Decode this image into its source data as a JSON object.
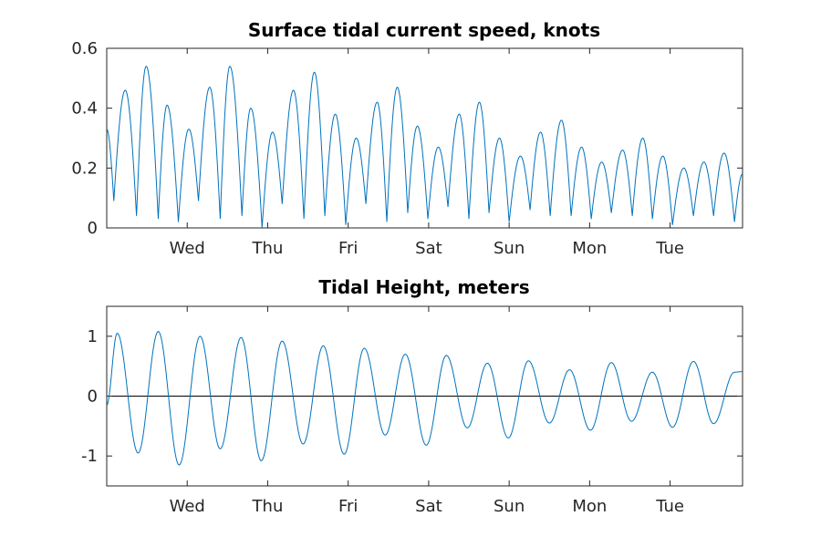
{
  "chart_data": [
    {
      "type": "line",
      "title": "Surface tidal current speed, knots",
      "xlabel": "",
      "ylabel": "",
      "x_unit": "days",
      "xlim": [
        0,
        7.9
      ],
      "ylim": [
        0,
        0.6
      ],
      "x_ticks": [
        {
          "value": 1,
          "label": "Wed"
        },
        {
          "value": 2,
          "label": "Thu"
        },
        {
          "value": 3,
          "label": "Fri"
        },
        {
          "value": 4,
          "label": "Sat"
        },
        {
          "value": 5,
          "label": "Sun"
        },
        {
          "value": 6,
          "label": "Mon"
        },
        {
          "value": 7,
          "label": "Tue"
        }
      ],
      "y_ticks": [
        {
          "value": 0,
          "label": "0"
        },
        {
          "value": 0.2,
          "label": "0.2"
        },
        {
          "value": 0.4,
          "label": "0.4"
        },
        {
          "value": 0.6,
          "label": "0.6"
        }
      ],
      "grid": false,
      "series": [
        {
          "color": "#0072bd",
          "x": [
            0.0,
            0.088,
            0.23,
            0.37,
            0.49,
            0.64,
            0.75,
            0.89,
            1.02,
            1.14,
            1.28,
            1.41,
            1.53,
            1.68,
            1.79,
            1.93,
            2.06,
            2.18,
            2.32,
            2.45,
            2.58,
            2.71,
            2.84,
            2.97,
            3.1,
            3.22,
            3.36,
            3.48,
            3.61,
            3.74,
            3.86,
            3.99,
            4.12,
            4.24,
            4.38,
            4.5,
            4.63,
            4.75,
            4.88,
            5.0,
            5.14,
            5.26,
            5.39,
            5.51,
            5.65,
            5.77,
            5.9,
            6.02,
            6.15,
            6.27,
            6.41,
            6.53,
            6.66,
            6.78,
            6.91,
            7.03,
            7.17,
            7.29,
            7.42,
            7.54,
            7.67,
            7.8,
            7.9
          ],
          "y": [
            0.33,
            0.09,
            0.46,
            0.04,
            0.54,
            0.03,
            0.41,
            0.02,
            0.33,
            0.09,
            0.47,
            0.03,
            0.54,
            0.04,
            0.4,
            0.0,
            0.32,
            0.08,
            0.46,
            0.03,
            0.52,
            0.04,
            0.38,
            0.01,
            0.3,
            0.08,
            0.42,
            0.02,
            0.47,
            0.05,
            0.34,
            0.03,
            0.27,
            0.07,
            0.38,
            0.03,
            0.42,
            0.05,
            0.3,
            0.02,
            0.24,
            0.06,
            0.32,
            0.04,
            0.36,
            0.04,
            0.27,
            0.03,
            0.22,
            0.05,
            0.26,
            0.04,
            0.3,
            0.03,
            0.24,
            0.01,
            0.2,
            0.04,
            0.22,
            0.04,
            0.25,
            0.02,
            0.18
          ]
        }
      ]
    },
    {
      "type": "line",
      "title": "Tidal Height, meters",
      "xlabel": "",
      "ylabel": "",
      "x_unit": "days",
      "xlim": [
        0,
        7.9
      ],
      "ylim": [
        -1.5,
        1.5
      ],
      "x_ticks": [
        {
          "value": 1,
          "label": "Wed"
        },
        {
          "value": 2,
          "label": "Thu"
        },
        {
          "value": 3,
          "label": "Fri"
        },
        {
          "value": 4,
          "label": "Sat"
        },
        {
          "value": 5,
          "label": "Sun"
        },
        {
          "value": 6,
          "label": "Mon"
        },
        {
          "value": 7,
          "label": "Tue"
        }
      ],
      "y_ticks": [
        {
          "value": -1,
          "label": "-1"
        },
        {
          "value": 0,
          "label": "0"
        },
        {
          "value": 1,
          "label": "1"
        }
      ],
      "grid": false,
      "zero_line": true,
      "series": [
        {
          "color": "#0072bd",
          "x": [
            0.0,
            0.13,
            0.39,
            0.64,
            0.9,
            1.16,
            1.41,
            1.67,
            1.92,
            2.18,
            2.44,
            2.69,
            2.95,
            3.2,
            3.46,
            3.71,
            3.97,
            4.22,
            4.48,
            4.73,
            4.99,
            5.24,
            5.5,
            5.75,
            6.01,
            6.27,
            6.52,
            6.78,
            7.03,
            7.29,
            7.54,
            7.8,
            7.9
          ],
          "y": [
            -0.15,
            1.05,
            -0.95,
            1.08,
            -1.15,
            1.0,
            -0.88,
            0.98,
            -1.08,
            0.92,
            -0.8,
            0.84,
            -0.97,
            0.8,
            -0.65,
            0.7,
            -0.82,
            0.68,
            -0.53,
            0.55,
            -0.7,
            0.59,
            -0.45,
            0.44,
            -0.57,
            0.56,
            -0.42,
            0.4,
            -0.52,
            0.58,
            -0.46,
            0.4,
            0.41
          ]
        }
      ]
    }
  ]
}
